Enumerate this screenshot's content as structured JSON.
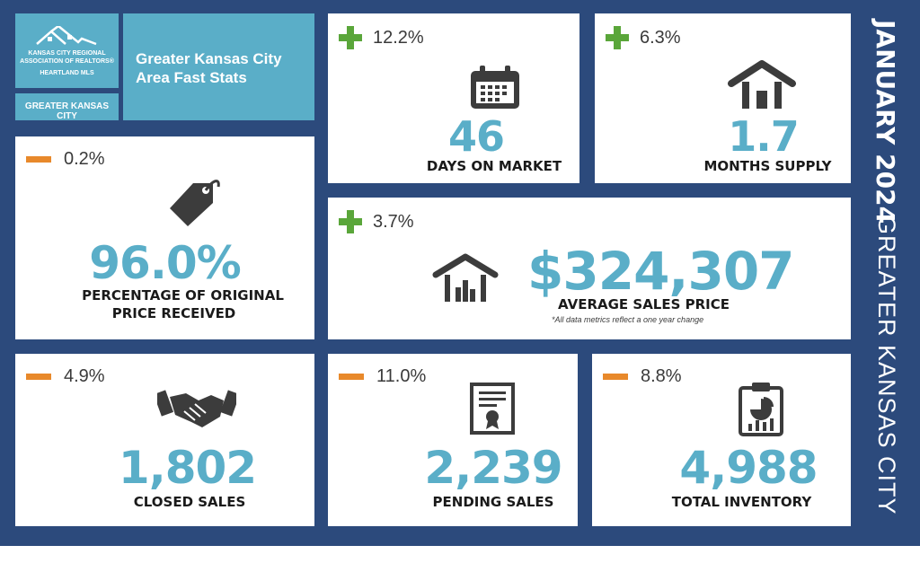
{
  "header": {
    "logo_line1": "KANSAS CITY REGIONAL",
    "logo_line2": "ASSOCIATION OF REALTORS®",
    "logo_line3": "HEARTLAND MLS",
    "area_tag": "GREATER KANSAS CITY",
    "title_line1": "Greater Kansas City",
    "title_line2": "Area Fast Stats"
  },
  "side": {
    "month": "JANUARY 2024",
    "area": "GREATER KANSAS CITY"
  },
  "colors": {
    "frame": "#2c4a7c",
    "accent": "#5aaec8",
    "up": "#5aa63a",
    "down": "#e8892b"
  },
  "stats": {
    "days_on_market": {
      "change": "12.2%",
      "direction": "up",
      "value": "46",
      "label": "DAYS ON MARKET",
      "icon": "calendar-icon"
    },
    "months_supply": {
      "change": "6.3%",
      "direction": "up",
      "value": "1.7",
      "label": "MONTHS SUPPLY",
      "icon": "house-icon"
    },
    "pct_original": {
      "change": "0.2%",
      "direction": "down",
      "value": "96.0%",
      "label_line1": "PERCENTAGE OF ORIGINAL",
      "label_line2": "PRICE RECEIVED",
      "icon": "price-tag-icon"
    },
    "avg_price": {
      "change": "3.7%",
      "direction": "up",
      "value": "$324,307",
      "label": "AVERAGE SALES PRICE",
      "note": "*All data metrics reflect a one year change",
      "icon": "house-chart-icon"
    },
    "closed_sales": {
      "change": "4.9%",
      "direction": "down",
      "value": "1,802",
      "label": "CLOSED SALES",
      "icon": "handshake-icon"
    },
    "pending_sales": {
      "change": "11.0%",
      "direction": "down",
      "value": "2,239",
      "label": "PENDING SALES",
      "icon": "certificate-icon"
    },
    "total_inventory": {
      "change": "8.8%",
      "direction": "down",
      "value": "4,988",
      "label": "TOTAL INVENTORY",
      "icon": "clipboard-chart-icon"
    }
  }
}
